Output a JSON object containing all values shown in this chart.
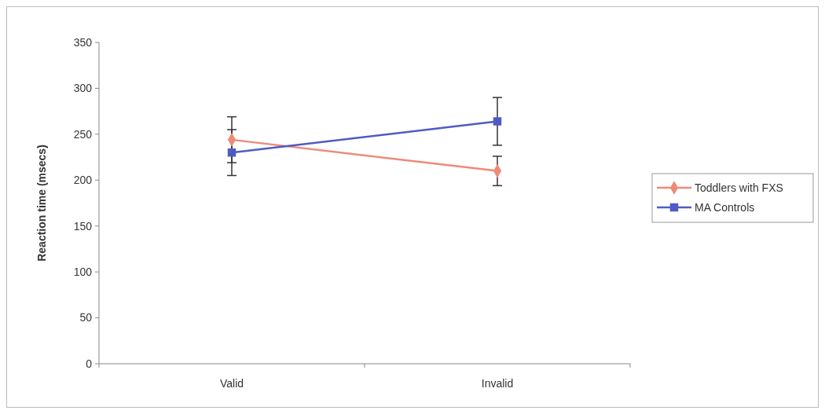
{
  "chart_data": {
    "type": "line",
    "ylabel": "Reaction time (msecs)",
    "categories": [
      "Valid",
      "Invalid"
    ],
    "series": [
      {
        "name": "Toddlers with FXS",
        "color": "#ee8a78",
        "values": [
          244,
          210
        ],
        "errors": [
          25,
          16
        ],
        "marker": "diamond"
      },
      {
        "name": "MA Controls",
        "color": "#4f5bc4",
        "values": [
          230,
          264
        ],
        "errors": [
          25,
          26
        ],
        "marker": "square"
      }
    ],
    "ylim": [
      0,
      350
    ],
    "yticks": [
      0,
      50,
      100,
      150,
      200,
      250,
      300,
      350
    ],
    "legend": "right",
    "grid": false
  }
}
